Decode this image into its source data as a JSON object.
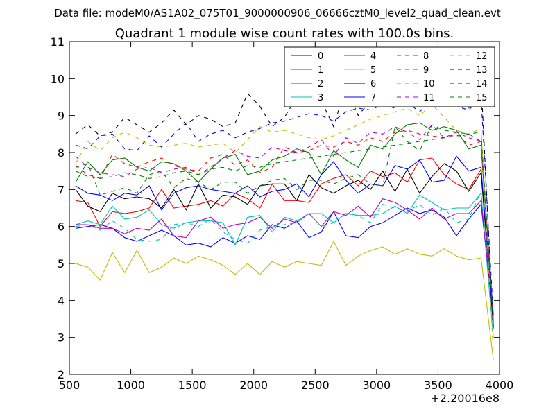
{
  "chart_data": {
    "type": "line",
    "suptitle": "Data file: modeM0/AS1A02_075T01_9000000906_06666cztM0_level2_quad_clean.evt",
    "title": "Quadrant 1 module wise count rates with 100.0s bins.",
    "x_offset_label": "+2.20016e8",
    "xlim": [
      500,
      4000
    ],
    "ylim": [
      2,
      11
    ],
    "xticks": [
      "500",
      "1000",
      "1500",
      "2000",
      "2500",
      "3000",
      "3500",
      "4000"
    ],
    "yticks": [
      "2",
      "3",
      "4",
      "5",
      "6",
      "7",
      "8",
      "9",
      "10",
      "11"
    ],
    "x": [
      550,
      650,
      750,
      850,
      950,
      1050,
      1150,
      1250,
      1350,
      1450,
      1550,
      1650,
      1750,
      1850,
      1950,
      2050,
      2150,
      2250,
      2350,
      2450,
      2550,
      2650,
      2750,
      2850,
      2950,
      3050,
      3150,
      3250,
      3350,
      3450,
      3550,
      3650,
      3750,
      3850,
      3950
    ],
    "series": [
      {
        "name": "0",
        "color": "#0000ff",
        "dash": false,
        "values": [
          5.95,
          6.0,
          6.05,
          5.95,
          5.7,
          5.6,
          5.75,
          5.9,
          5.75,
          5.5,
          5.55,
          5.45,
          5.7,
          5.55,
          5.75,
          5.65,
          6.05,
          5.95,
          6.15,
          5.7,
          5.85,
          6.4,
          5.75,
          5.7,
          6.0,
          6.1,
          6.3,
          6.5,
          6.35,
          6.45,
          6.25,
          5.75,
          6.2,
          6.6,
          3.6
        ]
      },
      {
        "name": "1",
        "color": "#008000",
        "dash": false,
        "values": [
          7.2,
          7.75,
          7.4,
          7.8,
          7.85,
          7.6,
          7.5,
          7.75,
          7.7,
          7.5,
          7.2,
          7.55,
          7.85,
          7.95,
          7.4,
          7.5,
          7.8,
          7.9,
          8.1,
          8.0,
          7.4,
          8.05,
          7.8,
          7.6,
          8.2,
          8.1,
          8.5,
          8.75,
          8.8,
          8.6,
          8.7,
          8.6,
          8.1,
          8.2,
          3.3
        ]
      },
      {
        "name": "2",
        "color": "#ff0000",
        "dash": false,
        "values": [
          6.7,
          6.65,
          6.0,
          6.4,
          6.35,
          6.4,
          6.5,
          7.0,
          6.5,
          6.55,
          6.6,
          6.7,
          6.55,
          6.9,
          6.75,
          6.5,
          7.15,
          6.7,
          6.7,
          6.65,
          7.15,
          7.3,
          7.4,
          7.1,
          7.5,
          7.35,
          7.45,
          7.2,
          7.8,
          7.85,
          7.4,
          7.15,
          7.0,
          7.55,
          3.4
        ]
      },
      {
        "name": "3",
        "color": "#00bfbf",
        "dash": false,
        "values": [
          6.05,
          6.15,
          6.05,
          6.55,
          6.2,
          6.25,
          6.45,
          6.05,
          5.95,
          6.1,
          6.15,
          6.15,
          6.1,
          5.5,
          6.25,
          6.3,
          5.85,
          6.25,
          6.15,
          6.35,
          6.35,
          6.1,
          6.35,
          6.3,
          6.3,
          6.35,
          6.55,
          6.35,
          6.85,
          6.65,
          6.45,
          6.5,
          6.5,
          6.9,
          3.0
        ]
      },
      {
        "name": "4",
        "color": "#bf00bf",
        "dash": false,
        "values": [
          6.05,
          6.05,
          5.95,
          5.95,
          5.8,
          5.95,
          5.9,
          6.2,
          5.75,
          5.7,
          6.15,
          6.25,
          5.95,
          6.05,
          6.1,
          6.25,
          5.95,
          6.2,
          6.1,
          6.35,
          6.0,
          6.4,
          6.3,
          6.55,
          6.25,
          6.75,
          6.65,
          6.45,
          6.2,
          6.5,
          6.2,
          6.35,
          6.35,
          6.7,
          3.5
        ]
      },
      {
        "name": "5",
        "color": "#bfbf00",
        "dash": false,
        "values": [
          5.0,
          4.9,
          4.55,
          5.3,
          4.75,
          5.35,
          4.75,
          4.9,
          5.15,
          5.0,
          5.2,
          5.1,
          4.95,
          4.7,
          5.0,
          4.7,
          5.05,
          4.9,
          5.05,
          5.0,
          4.95,
          5.6,
          4.95,
          5.2,
          5.35,
          5.45,
          5.25,
          5.4,
          5.25,
          5.2,
          5.4,
          5.2,
          5.1,
          5.15,
          2.4
        ]
      },
      {
        "name": "6",
        "color": "#000000",
        "dash": false,
        "values": [
          7.0,
          6.55,
          6.4,
          6.9,
          6.75,
          6.8,
          6.75,
          6.5,
          7.0,
          6.45,
          7.15,
          6.5,
          6.85,
          6.8,
          6.6,
          7.1,
          7.15,
          7.15,
          6.7,
          7.4,
          7.05,
          6.9,
          7.1,
          7.25,
          7.0,
          7.5,
          6.95,
          7.55,
          6.9,
          7.35,
          7.7,
          7.5,
          6.95,
          7.45,
          3.3
        ]
      },
      {
        "name": "7",
        "color": "#0000ff",
        "dash": false,
        "values": [
          7.1,
          6.9,
          6.85,
          6.7,
          6.9,
          6.85,
          7.1,
          6.45,
          6.9,
          7.05,
          7.1,
          7.0,
          6.95,
          6.9,
          7.1,
          6.8,
          6.95,
          7.0,
          7.15,
          6.8,
          7.4,
          7.75,
          7.25,
          6.9,
          7.15,
          7.1,
          7.65,
          7.55,
          7.8,
          7.2,
          7.25,
          7.9,
          7.5,
          7.6,
          3.4
        ]
      },
      {
        "name": "8",
        "color": "#008000",
        "dash": true,
        "values": [
          7.6,
          7.7,
          6.85,
          6.95,
          7.05,
          6.9,
          7.4,
          7.5,
          7.05,
          7.3,
          7.2,
          7.0,
          7.2,
          7.2,
          6.9,
          7.1,
          7.25,
          7.3,
          7.0,
          7.25,
          7.25,
          7.15,
          7.3,
          7.4,
          7.15,
          7.1,
          8.7,
          8.3,
          8.05,
          8.75,
          8.6,
          8.55,
          8.5,
          8.3,
          3.6
        ]
      },
      {
        "name": "9",
        "color": "#ff0000",
        "dash": true,
        "values": [
          7.65,
          7.4,
          7.3,
          7.95,
          7.7,
          7.6,
          7.75,
          7.85,
          7.65,
          7.55,
          7.5,
          7.85,
          7.95,
          7.65,
          7.8,
          7.45,
          7.6,
          8.15,
          8.0,
          8.05,
          8.2,
          8.15,
          8.3,
          8.2,
          8.4,
          8.3,
          8.55,
          8.6,
          8.5,
          8.45,
          8.4,
          8.5,
          8.2,
          8.3,
          3.5
        ]
      },
      {
        "name": "10",
        "color": "#00bfbf",
        "dash": true,
        "values": [
          6.0,
          6.05,
          5.9,
          6.15,
          5.95,
          5.65,
          5.6,
          5.65,
          6.05,
          6.1,
          6.0,
          6.2,
          5.85,
          5.65,
          5.55,
          5.9,
          6.0,
          6.05,
          6.1,
          6.35,
          6.0,
          6.1,
          6.35,
          6.3,
          6.1,
          6.6,
          6.5,
          6.4,
          6.6,
          6.3,
          6.5,
          6.1,
          6.2,
          6.95,
          3.7
        ]
      },
      {
        "name": "11",
        "color": "#bf00bf",
        "dash": true,
        "values": [
          7.9,
          7.6,
          7.45,
          7.4,
          7.35,
          7.55,
          7.6,
          7.45,
          7.55,
          7.6,
          7.4,
          7.6,
          7.85,
          8.05,
          7.9,
          7.85,
          8.15,
          8.05,
          8.0,
          8.15,
          8.35,
          7.9,
          8.4,
          8.25,
          8.55,
          8.5,
          8.7,
          8.55,
          8.35,
          8.75,
          8.4,
          8.55,
          8.4,
          8.3,
          3.5
        ]
      },
      {
        "name": "12",
        "color": "#bfbf00",
        "dash": true,
        "values": [
          7.7,
          8.3,
          8.05,
          8.4,
          8.55,
          8.4,
          8.2,
          8.15,
          8.2,
          8.25,
          8.15,
          8.2,
          8.25,
          8.0,
          8.35,
          8.7,
          8.55,
          8.6,
          8.5,
          8.4,
          8.35,
          8.45,
          8.6,
          8.75,
          8.9,
          9.0,
          9.1,
          9.2,
          9.0,
          9.3,
          8.95,
          8.6,
          8.5,
          8.65,
          2.6
        ]
      },
      {
        "name": "13",
        "color": "#000000",
        "dash": true,
        "values": [
          8.5,
          8.75,
          8.45,
          8.55,
          8.95,
          8.75,
          8.55,
          8.8,
          9.15,
          8.75,
          9.0,
          8.9,
          8.7,
          8.8,
          9.6,
          9.25,
          8.7,
          8.95,
          9.5,
          9.3,
          9.4,
          8.7,
          9.8,
          9.0,
          9.4,
          9.75,
          10.1,
          9.85,
          9.7,
          10.1,
          9.5,
          9.3,
          9.2,
          9.95,
          3.2
        ]
      },
      {
        "name": "14",
        "color": "#0000ff",
        "dash": true,
        "values": [
          8.2,
          8.1,
          8.45,
          8.5,
          8.1,
          8.05,
          8.45,
          8.15,
          8.5,
          8.8,
          8.3,
          8.5,
          8.6,
          8.4,
          8.55,
          8.65,
          8.8,
          8.85,
          8.95,
          9.05,
          9.0,
          8.85,
          9.1,
          9.2,
          9.15,
          9.3,
          9.2,
          9.35,
          9.1,
          9.45,
          9.4,
          9.25,
          9.15,
          9.5,
          3.6
        ]
      },
      {
        "name": "15",
        "color": "#008000",
        "dash": true,
        "values": [
          7.5,
          7.35,
          7.3,
          7.35,
          7.45,
          7.4,
          7.3,
          7.35,
          7.45,
          7.5,
          7.4,
          7.55,
          7.6,
          7.5,
          7.65,
          7.6,
          7.7,
          7.75,
          7.8,
          7.85,
          7.9,
          7.95,
          8.0,
          8.05,
          8.1,
          8.15,
          8.2,
          8.25,
          8.3,
          8.35,
          8.4,
          8.45,
          8.5,
          8.55,
          3.4
        ]
      }
    ]
  }
}
